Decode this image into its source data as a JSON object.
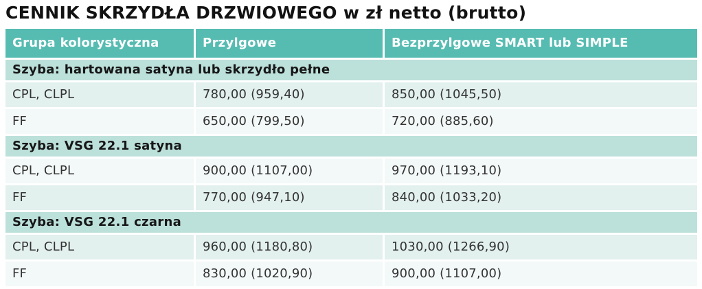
{
  "title": "CENNIK SKRZYDŁA DRZWIOWEGO w zł netto (brutto)",
  "table": {
    "columns": [
      "Grupa kolorystyczna",
      "Przylgowe",
      "Bezprzylgowe SMART lub SIMPLE"
    ],
    "sections": [
      {
        "header": "Szyba: hartowana satyna lub skrzydło pełne",
        "rows": [
          {
            "group": "CPL, CLPL",
            "przylgowe": "780,00 (959,40)",
            "bezprzylgowe": "850,00 (1045,50)"
          },
          {
            "group": "FF",
            "przylgowe": "650,00 (799,50)",
            "bezprzylgowe": "720,00 (885,60)"
          }
        ]
      },
      {
        "header": "Szyba: VSG 22.1 satyna",
        "rows": [
          {
            "group": "CPL, CLPL",
            "przylgowe": "900,00 (1107,00)",
            "bezprzylgowe": "970,00 (1193,10)"
          },
          {
            "group": "FF",
            "przylgowe": "770,00 (947,10)",
            "bezprzylgowe": "840,00 (1033,20)"
          }
        ]
      },
      {
        "header": "Szyba: VSG 22.1 czarna",
        "rows": [
          {
            "group": "CPL, CLPL",
            "przylgowe": "960,00 (1180,80)",
            "bezprzylgowe": "1030,00 (1266,90)"
          },
          {
            "group": "FF",
            "przylgowe": "830,00 (1020,90)",
            "bezprzylgowe": "900,00 (1107,00)"
          }
        ]
      }
    ]
  },
  "colors": {
    "header_teal": "#56bcb2",
    "section_teal": "#bce0da",
    "row_mint": "#e2f0ee",
    "row_light": "#f3f9f8"
  }
}
